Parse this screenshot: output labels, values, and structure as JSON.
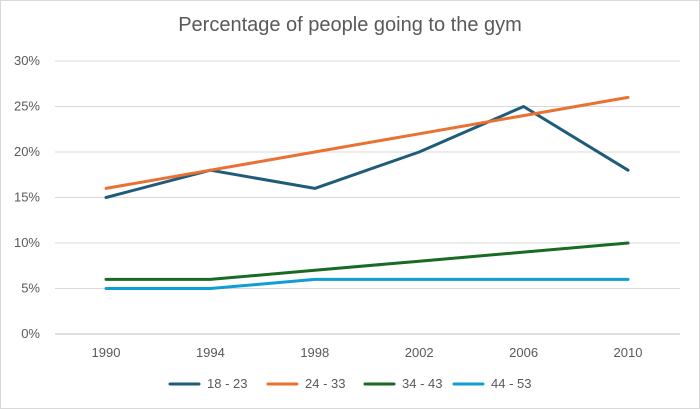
{
  "chart_data": {
    "type": "line",
    "title": "Percentage of people going to the gym",
    "xlabel": "",
    "ylabel": "",
    "categories": [
      "1990",
      "1994",
      "1998",
      "2002",
      "2006",
      "2010"
    ],
    "ylim": [
      0,
      30
    ],
    "yticks": [
      0,
      5,
      10,
      15,
      20,
      25,
      30
    ],
    "ytick_labels": [
      "0%",
      "5%",
      "10%",
      "15%",
      "20%",
      "25%",
      "30%"
    ],
    "grid": true,
    "legend_position": "bottom",
    "series": [
      {
        "name": "18 - 23",
        "color": "#1f5c7a",
        "values": [
          15,
          18,
          16,
          20,
          25,
          18
        ]
      },
      {
        "name": "24 - 33",
        "color": "#e97132",
        "values": [
          16,
          18,
          20,
          22,
          24,
          26
        ]
      },
      {
        "name": "34 - 43",
        "color": "#196b24",
        "values": [
          6,
          6,
          7,
          8,
          9,
          10
        ]
      },
      {
        "name": "44 - 53",
        "color": "#0f9ed5",
        "values": [
          5,
          5,
          6,
          6,
          6,
          6
        ]
      }
    ]
  }
}
